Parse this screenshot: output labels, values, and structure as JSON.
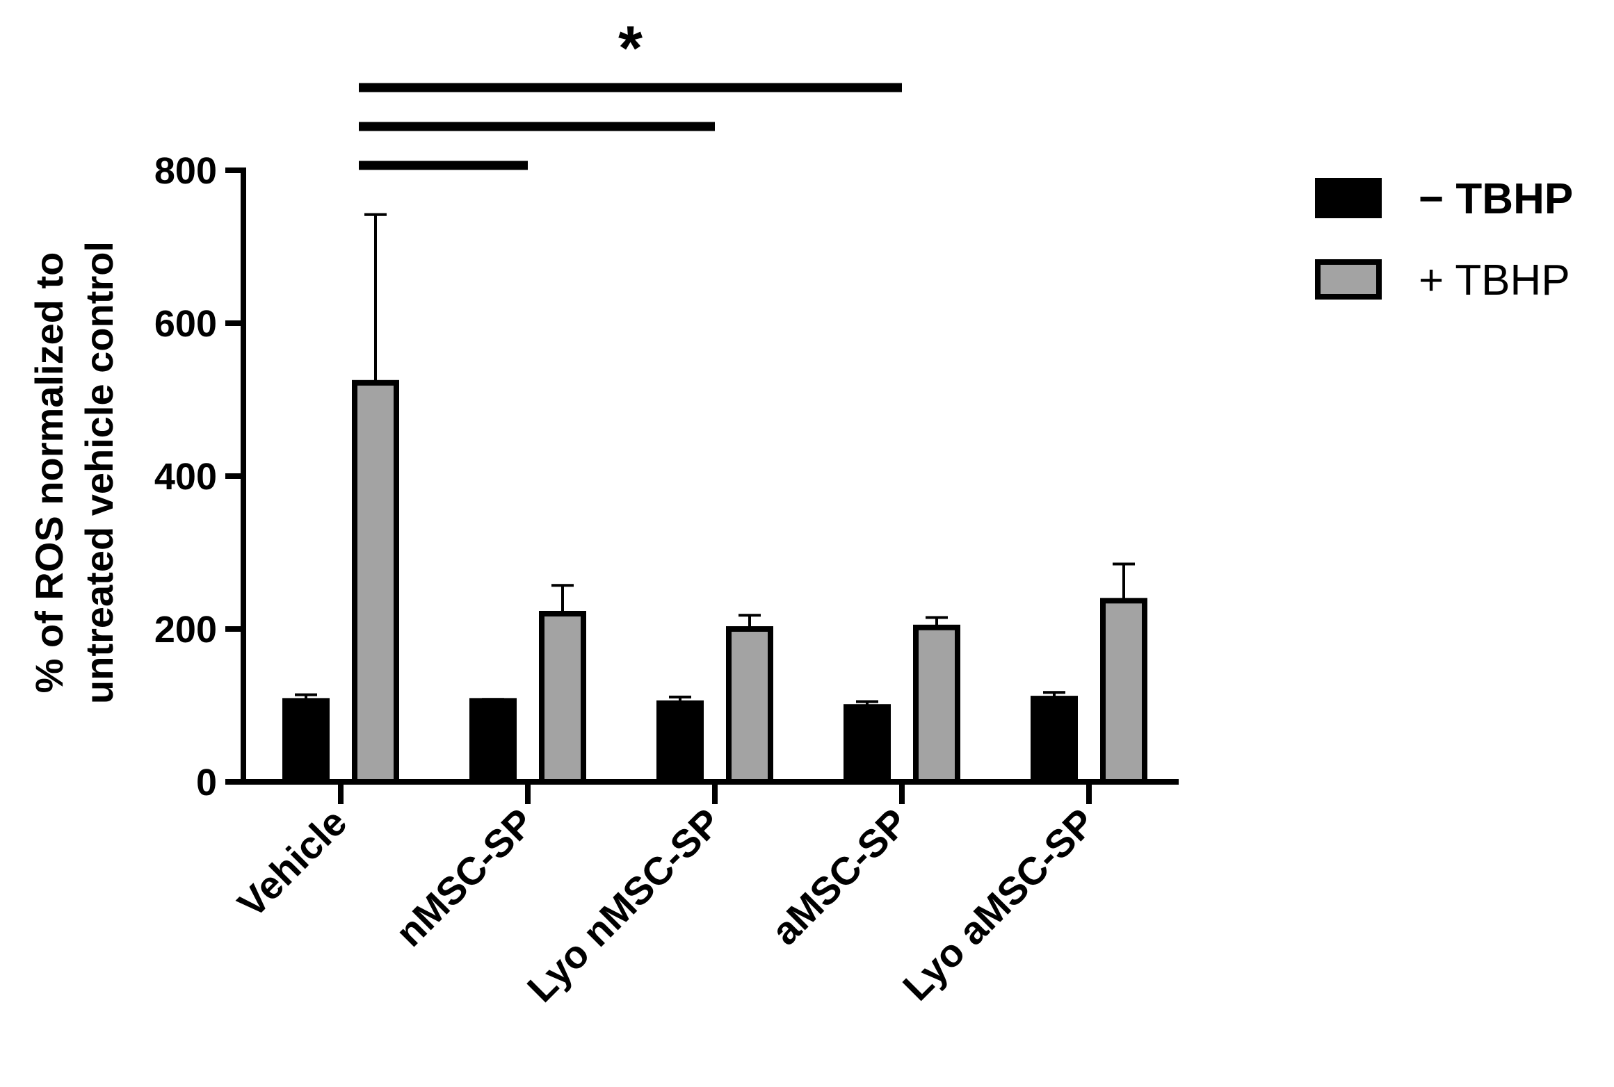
{
  "chart_data": {
    "type": "bar",
    "title": "",
    "xlabel": "",
    "ylabel_line1": "% of ROS normalized to",
    "ylabel_line2": "untreated vehicle control",
    "ylim": [
      0,
      800
    ],
    "yticks": [
      0,
      200,
      400,
      600,
      800
    ],
    "categories": [
      "Vehicle",
      "nMSC-SP",
      "Lyo nMSC-SP",
      "aMSC-SP",
      "Lyo aMSC-SP"
    ],
    "series": [
      {
        "name": "− TBHP",
        "color": "#000000",
        "values": [
          106,
          106,
          103,
          98,
          109
        ],
        "errors": [
          8,
          2,
          8,
          7,
          8
        ]
      },
      {
        "name": "+ TBHP",
        "color": "#a3a3a3",
        "values": [
          522,
          220,
          200,
          202,
          237
        ],
        "errors": [
          220,
          37,
          18,
          13,
          48
        ]
      }
    ],
    "legend_position": "right",
    "significance": {
      "label": "*",
      "comparisons": [
        [
          "Vehicle",
          "nMSC-SP"
        ],
        [
          "Vehicle",
          "Lyo nMSC-SP"
        ],
        [
          "Vehicle",
          "aMSC-SP"
        ]
      ]
    }
  }
}
